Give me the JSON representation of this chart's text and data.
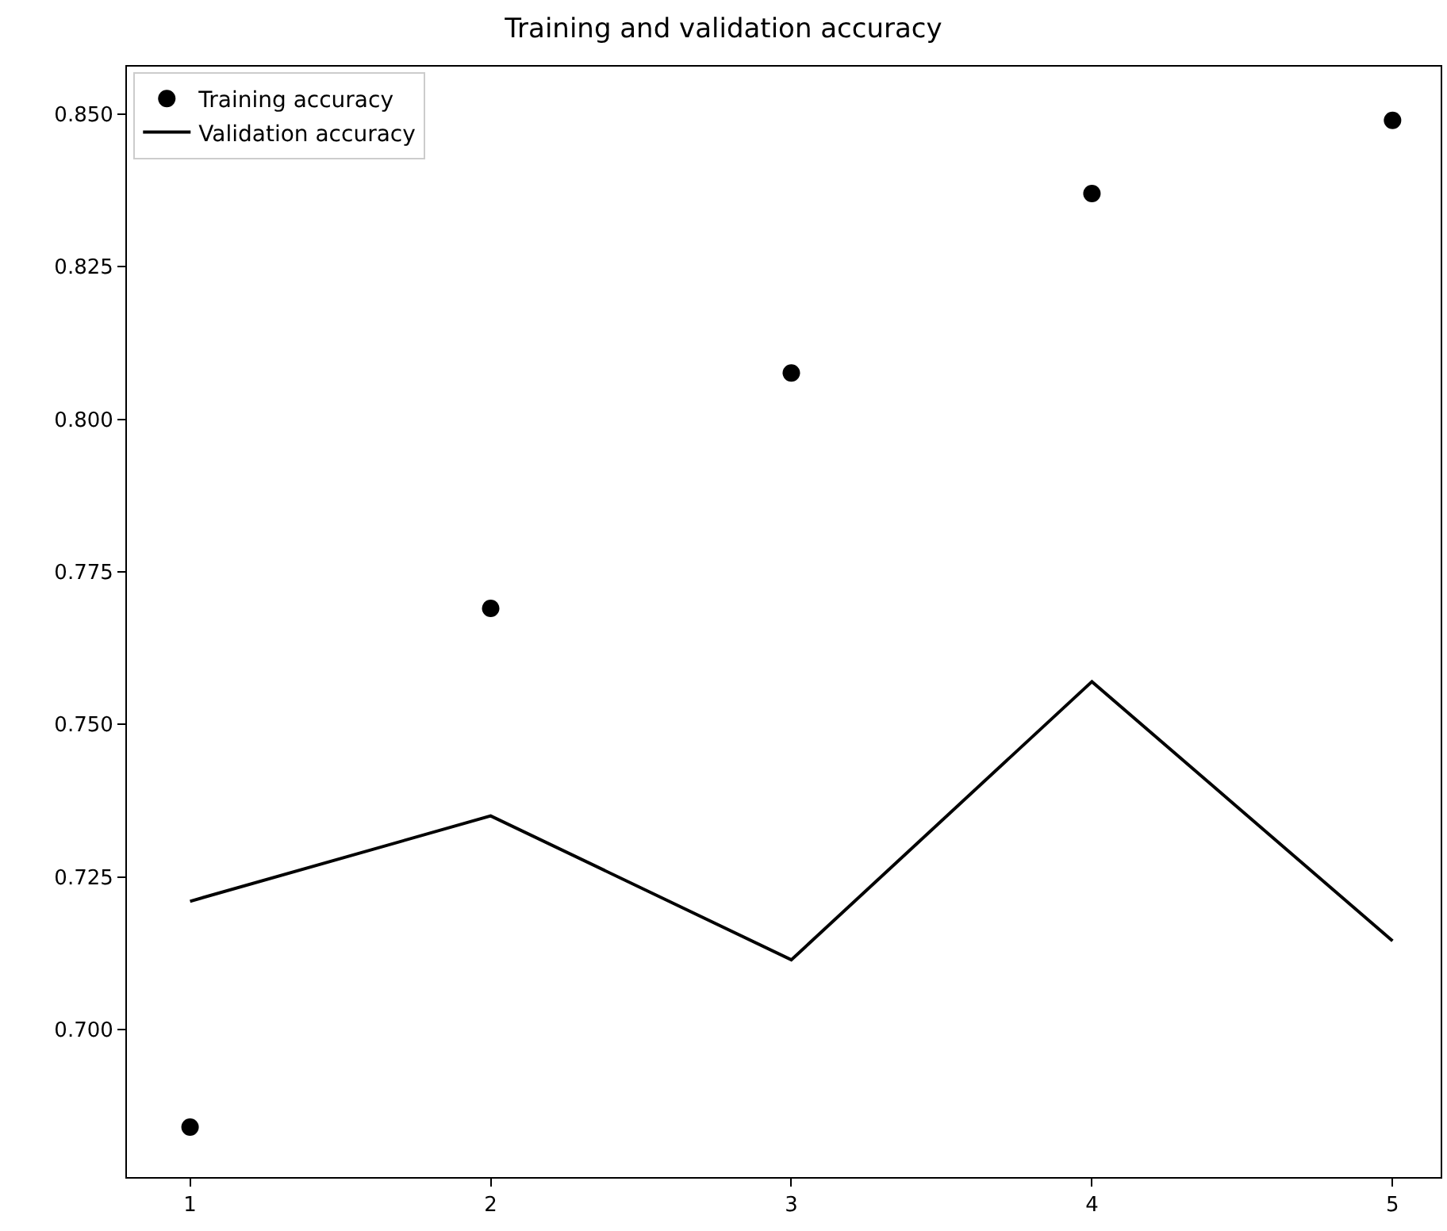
{
  "chart_data": {
    "type": "scatter",
    "title": "Training and validation accuracy",
    "x": [
      1,
      2,
      3,
      4,
      5
    ],
    "series": [
      {
        "name": "Training accuracy",
        "color": "#000000",
        "marker": "circle",
        "values": [
          0.684,
          0.769,
          0.8076,
          0.837,
          0.849
        ]
      },
      {
        "name": "Validation accuracy",
        "type": "line",
        "color": "#000000",
        "marker": "none",
        "line_style": "solid",
        "values": [
          0.721,
          0.735,
          0.7114,
          0.757,
          0.7145
        ]
      }
    ],
    "xlim": [
      0.79,
      5.16
    ],
    "xticks": [
      1,
      2,
      3,
      4,
      5
    ],
    "ylim": [
      0.6758,
      0.8578
    ],
    "yticks": [
      {
        "value": 0.7,
        "label": "0.700"
      },
      {
        "value": 0.725,
        "label": "0.725"
      },
      {
        "value": 0.75,
        "label": "0.750"
      },
      {
        "value": 0.775,
        "label": "0.775"
      },
      {
        "value": 0.8,
        "label": "0.800"
      },
      {
        "value": 0.825,
        "label": "0.825"
      },
      {
        "value": 0.85,
        "label": "0.850"
      }
    ],
    "legend": "top left"
  }
}
